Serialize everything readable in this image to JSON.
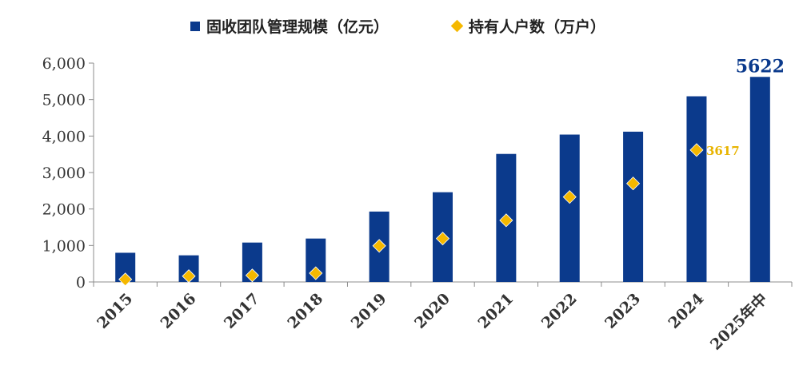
{
  "legend": {
    "bar_label": "固收团队管理规模（亿元）",
    "point_label": "持有人户数（万户）"
  },
  "colors": {
    "bar": "#0b3a8c",
    "point": "#f5b800",
    "bar_label": "#0b3a8c",
    "point_label": "#e8b400"
  },
  "chart_data": {
    "type": "bar",
    "categories": [
      "2015",
      "2016",
      "2017",
      "2018",
      "2019",
      "2020",
      "2021",
      "2022",
      "2023",
      "2024",
      "2025年中"
    ],
    "series": [
      {
        "name": "固收团队管理规模（亿元）",
        "type": "bar",
        "values": [
          800,
          730,
          1080,
          1190,
          1930,
          2460,
          3510,
          4040,
          4120,
          5090,
          5622
        ]
      },
      {
        "name": "持有人户数（万户）",
        "type": "scatter",
        "values": [
          70,
          160,
          180,
          240,
          990,
          1190,
          1690,
          2330,
          2700,
          3617,
          null
        ]
      }
    ],
    "ylim": [
      0,
      6000
    ],
    "yticks": [
      "0",
      "1,000",
      "2,000",
      "3,000",
      "4,000",
      "5,000",
      "6,000"
    ],
    "ytick_values": [
      0,
      1000,
      2000,
      3000,
      4000,
      5000,
      6000
    ],
    "annotations": [
      {
        "series": 0,
        "index": 10,
        "text": "5622"
      },
      {
        "series": 1,
        "index": 9,
        "text": "3617"
      }
    ],
    "grid": false,
    "legend_position": "top"
  }
}
